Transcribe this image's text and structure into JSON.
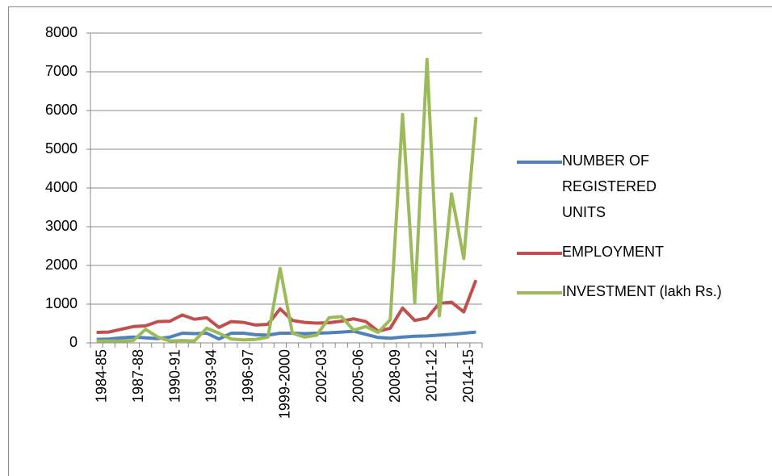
{
  "chart_data": {
    "type": "line",
    "categories": [
      "1984-85",
      null,
      null,
      "1987-88",
      null,
      null,
      "1990-91",
      null,
      null,
      "1993-94",
      null,
      null,
      "1996-97",
      null,
      null,
      "1999-2000",
      null,
      null,
      "2002-03",
      null,
      null,
      "2005-06",
      null,
      null,
      "2008-09",
      null,
      null,
      "2011-12",
      null,
      null,
      "2014-15",
      null
    ],
    "series": [
      {
        "name": "NUMBER OF REGISTERED UNITS",
        "color": "#4f81bd",
        "values": [
          90,
          100,
          130,
          150,
          130,
          110,
          150,
          250,
          240,
          250,
          100,
          250,
          250,
          210,
          200,
          250,
          250,
          240,
          250,
          260,
          280,
          300,
          220,
          140,
          120,
          150,
          170,
          180,
          200,
          220,
          250,
          280
        ]
      },
      {
        "name": "EMPLOYMENT",
        "color": "#c0504d",
        "values": [
          270,
          280,
          350,
          420,
          440,
          550,
          560,
          720,
          610,
          650,
          400,
          550,
          530,
          460,
          480,
          880,
          580,
          530,
          510,
          520,
          560,
          620,
          550,
          300,
          380,
          900,
          580,
          640,
          1020,
          1050,
          800,
          1620
        ]
      },
      {
        "name": "INVESTMENT (lakh Rs.)",
        "color": "#9bbb59",
        "values": [
          50,
          50,
          50,
          60,
          350,
          150,
          50,
          60,
          50,
          380,
          250,
          100,
          80,
          90,
          150,
          1920,
          250,
          150,
          200,
          650,
          680,
          330,
          420,
          270,
          600,
          5900,
          1050,
          7320,
          700,
          3850,
          2180,
          5830
        ]
      }
    ],
    "ylim": [
      0,
      8000
    ],
    "yticks": [
      0,
      1000,
      2000,
      3000,
      4000,
      5000,
      6000,
      7000,
      8000
    ],
    "grid": true
  }
}
